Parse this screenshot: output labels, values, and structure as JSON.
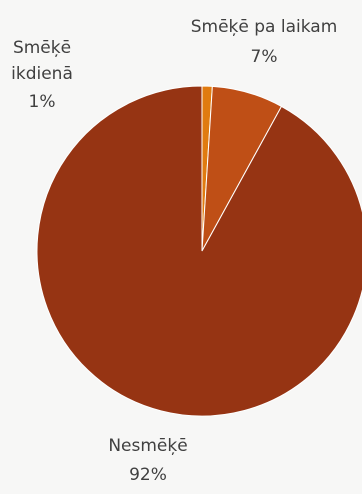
{
  "chart_data": {
    "type": "pie",
    "slices": [
      {
        "name": "Smēķē ikdienā",
        "value": 1,
        "label": "1%",
        "color": "#e07b10"
      },
      {
        "name": "Smēķē pa laikam",
        "value": 7,
        "label": "7%",
        "color": "#bf4f16"
      },
      {
        "name": "Nesmēķē",
        "value": 92,
        "label": "92%",
        "color": "#963413"
      }
    ],
    "start_angle_deg": 0,
    "direction": "clockwise",
    "legend": "none"
  }
}
